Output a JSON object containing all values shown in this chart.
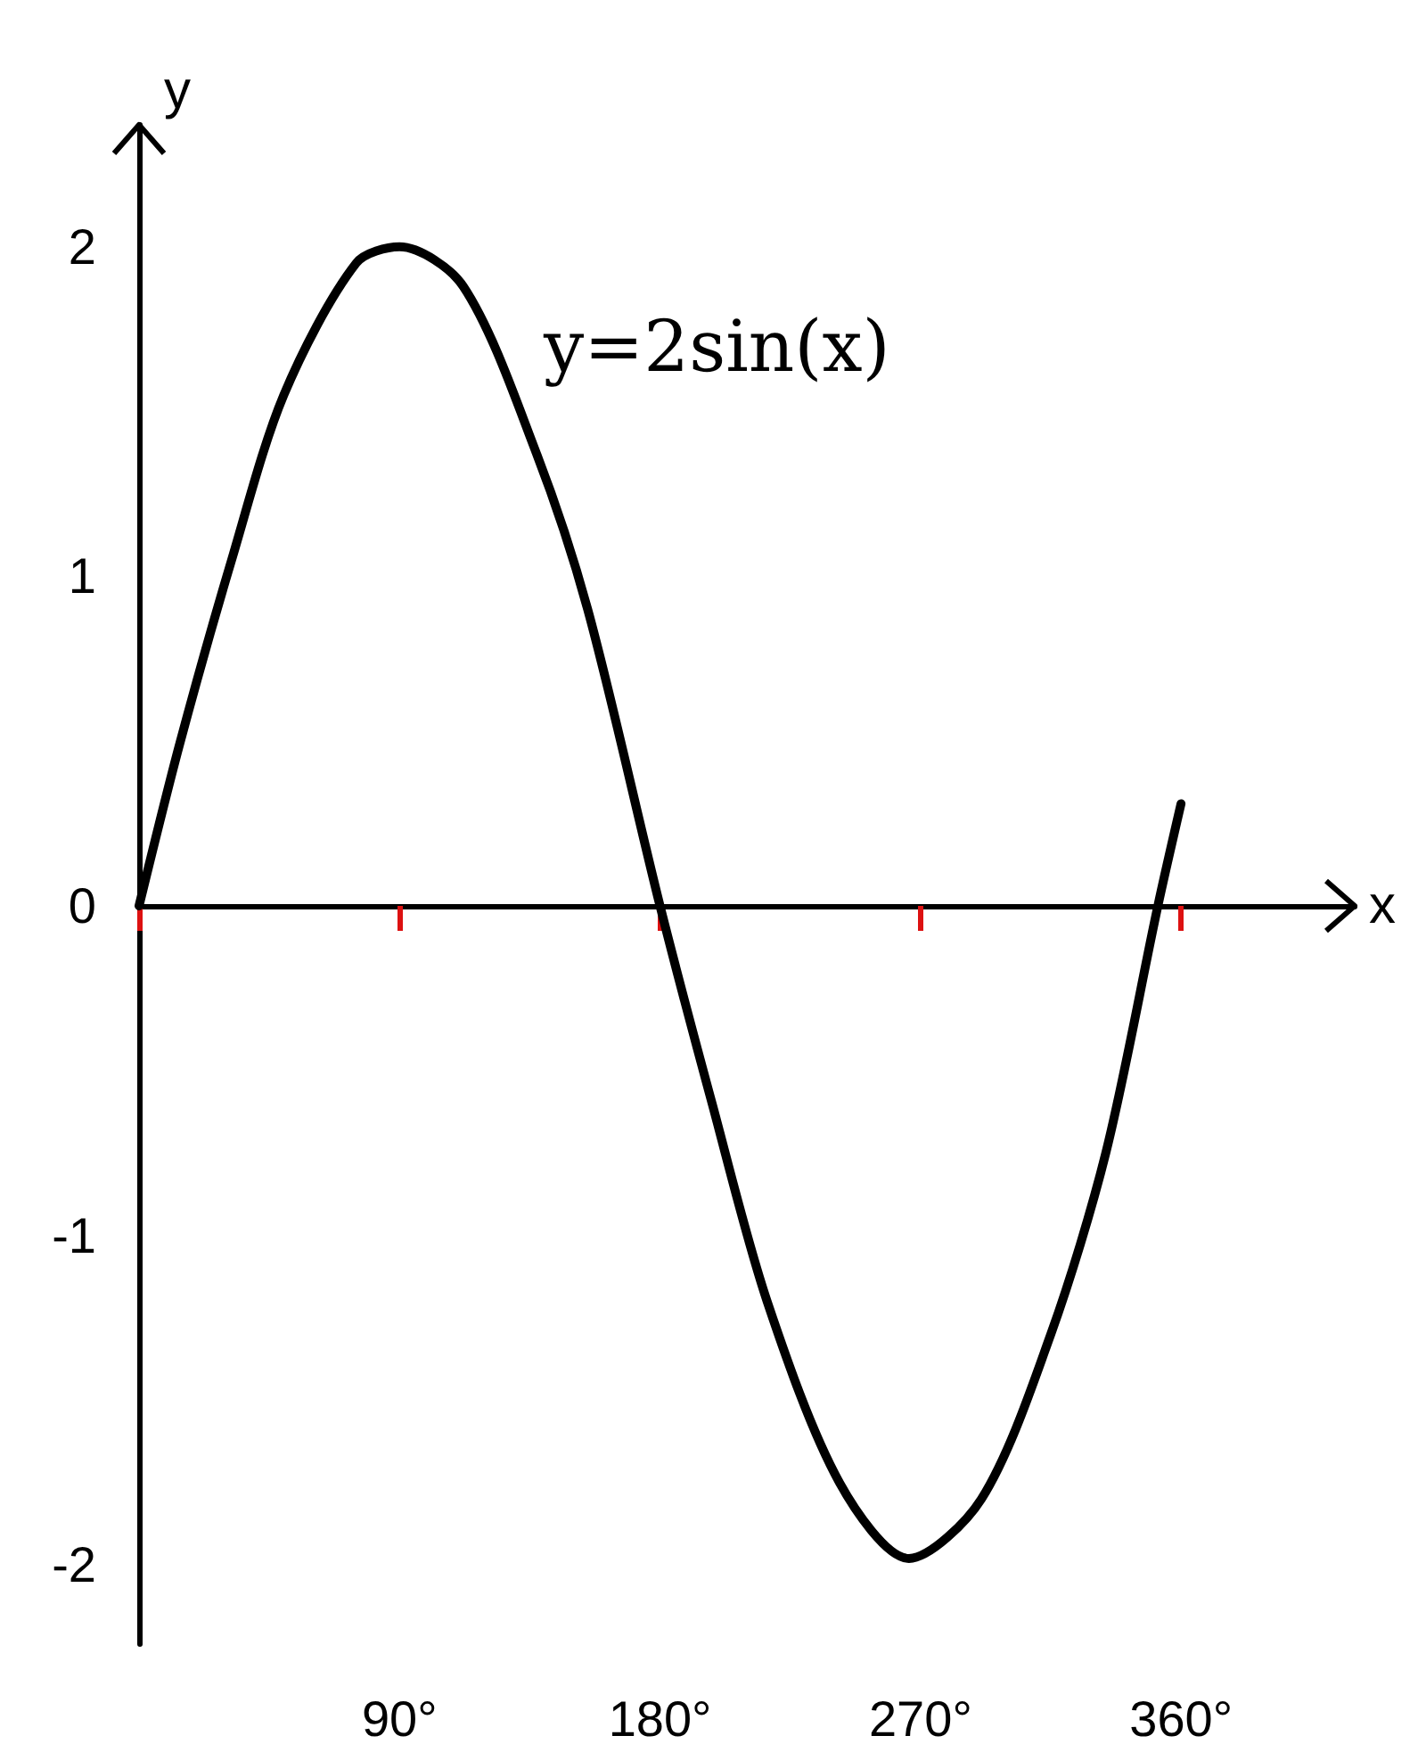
{
  "chart_data": {
    "type": "line",
    "xlabel": "x",
    "ylabel": "y",
    "annotations": [
      "y=2sin(x)"
    ],
    "x": [
      0,
      14,
      32,
      50,
      75,
      90,
      112,
      137,
      155,
      180,
      198,
      217,
      242,
      266,
      291,
      315,
      334,
      352,
      360
    ],
    "series": [
      {
        "color": "#000000",
        "values": [
          0,
          0.49,
          1.05,
          1.55,
          1.95,
          2,
          1.88,
          1.38,
          0.9,
          0,
          -0.6,
          -1.2,
          -1.75,
          -1.98,
          -1.8,
          -1.3,
          -0.75,
          0,
          0.31
        ]
      }
    ],
    "xlim": [
      0,
      420
    ],
    "xticks": [
      {
        "value": 90,
        "label": "90°"
      },
      {
        "value": 180,
        "label": "180°"
      },
      {
        "value": 270,
        "label": "270°"
      },
      {
        "value": 360,
        "label": "360°"
      }
    ],
    "ylim": [
      -2.24,
      2.37
    ],
    "yticks": [
      -2,
      -1,
      0,
      1,
      2
    ],
    "marker": "none",
    "line_style": "solid"
  }
}
